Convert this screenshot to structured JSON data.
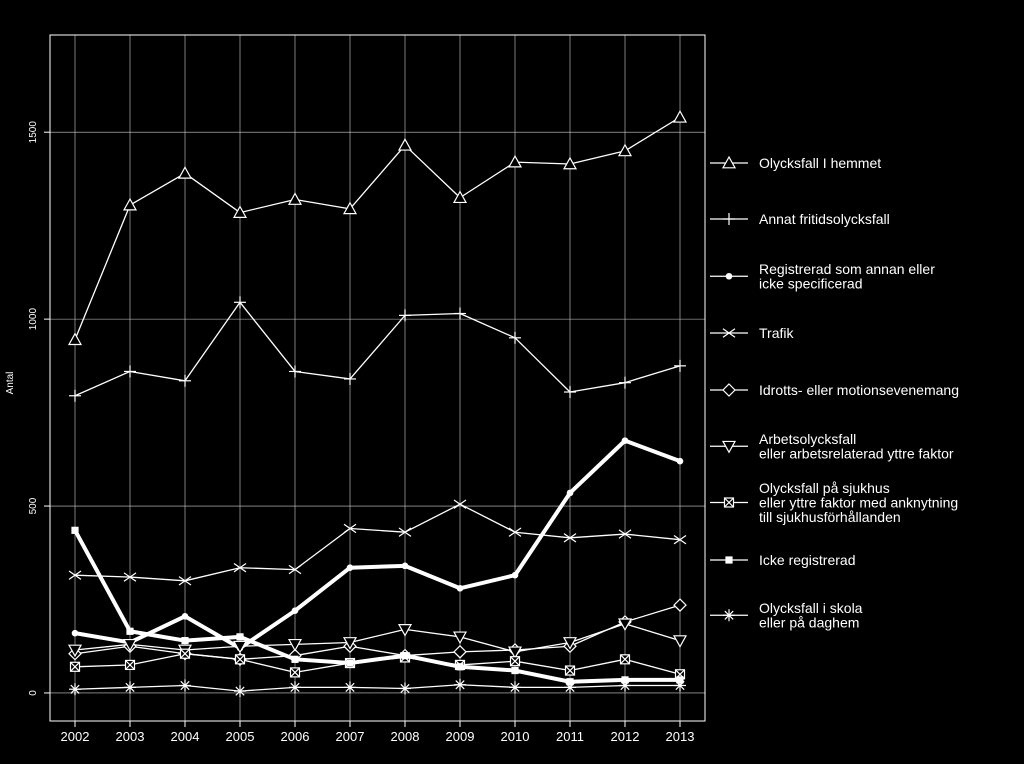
{
  "chart_data": {
    "type": "line",
    "title": "",
    "xlabel": "",
    "ylabel": "Antal",
    "x": [
      "2002",
      "2003",
      "2004",
      "2005",
      "2006",
      "2007",
      "2008",
      "2009",
      "2010",
      "2011",
      "2012",
      "2013"
    ],
    "ylim": [
      -75,
      1760
    ],
    "yticks": [
      "0",
      "500",
      "1000",
      "1500"
    ],
    "grid": true,
    "legend_position": "right",
    "background": "#000000",
    "foreground": "#ffffff",
    "series": [
      {
        "name": "Olycksfall I hemmet",
        "marker": "triangle-up-icon",
        "values": [
          945,
          1305,
          1390,
          1285,
          1320,
          1295,
          1465,
          1325,
          1420,
          1415,
          1450,
          1540
        ]
      },
      {
        "name": "Annat fritidsolycksfall",
        "marker": "plus-icon",
        "values": [
          795,
          860,
          835,
          1045,
          860,
          840,
          1010,
          1015,
          950,
          805,
          830,
          875
        ]
      },
      {
        "name": "Registrerad som annan eller icke specificerad",
        "marker": "filled-circle-icon",
        "values": [
          160,
          135,
          205,
          120,
          220,
          335,
          340,
          280,
          315,
          535,
          675,
          620
        ]
      },
      {
        "name": "Trafik",
        "marker": "x-icon",
        "values": [
          315,
          310,
          300,
          335,
          330,
          440,
          430,
          505,
          430,
          415,
          425,
          410
        ]
      },
      {
        "name": "Idrotts- eller motionsevenemang",
        "marker": "diamond-icon",
        "values": [
          105,
          125,
          105,
          90,
          100,
          125,
          100,
          110,
          115,
          125,
          190,
          235
        ]
      },
      {
        "name": "Arbetsolycksfall eller arbetsrelaterad yttre faktor",
        "marker": "triangle-down-icon",
        "values": [
          115,
          130,
          115,
          125,
          130,
          135,
          170,
          150,
          110,
          135,
          185,
          140
        ]
      },
      {
        "name": "Olycksfall på sjukhus eller yttre faktor med anknytning till sjukhusförhållanden",
        "marker": "boxed-x-icon",
        "values": [
          70,
          75,
          105,
          90,
          55,
          80,
          95,
          75,
          85,
          60,
          90,
          50
        ]
      },
      {
        "name": "Icke registrerad",
        "marker": "filled-square-icon",
        "values": [
          435,
          165,
          140,
          150,
          90,
          80,
          100,
          70,
          60,
          30,
          35,
          35
        ]
      },
      {
        "name": "Olycksfall i skola eller på daghem",
        "marker": "asterisk-icon",
        "values": [
          10,
          15,
          20,
          5,
          15,
          15,
          12,
          22,
          15,
          15,
          20,
          20
        ]
      }
    ]
  },
  "legend": [
    {
      "marker": "triangle-up-icon",
      "lines": [
        "Olycksfall I hemmet"
      ]
    },
    {
      "marker": "plus-icon",
      "lines": [
        "Annat fritidsolycksfall"
      ]
    },
    {
      "marker": "filled-circle-icon",
      "lines": [
        "Registrerad som annan eller",
        "icke specificerad"
      ]
    },
    {
      "marker": "x-icon",
      "lines": [
        "Trafik"
      ]
    },
    {
      "marker": "diamond-icon",
      "lines": [
        "Idrotts- eller motionsevenemang"
      ]
    },
    {
      "marker": "triangle-down-icon",
      "lines": [
        "Arbetsolycksfall",
        "eller arbetsrelaterad yttre faktor"
      ]
    },
    {
      "marker": "boxed-x-icon",
      "lines": [
        "Olycksfall på sjukhus",
        "eller yttre faktor med anknytning",
        "till sjukhusförhållanden"
      ]
    },
    {
      "marker": "filled-square-icon",
      "lines": [
        "Icke registrerad"
      ]
    },
    {
      "marker": "asterisk-icon",
      "lines": [
        "Olycksfall i skola",
        "eller på daghem"
      ]
    }
  ]
}
